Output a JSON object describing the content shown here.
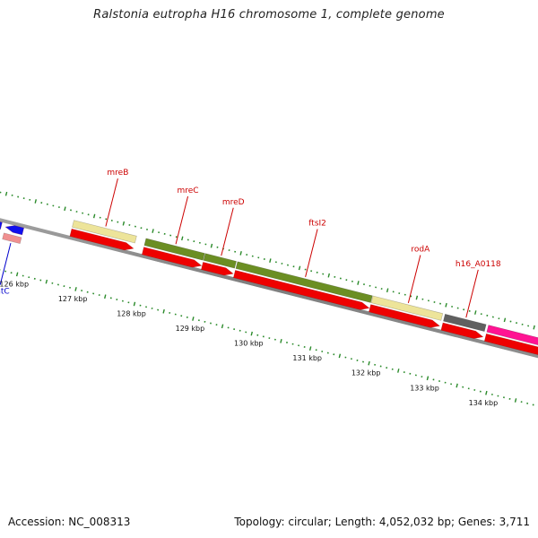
{
  "title": "Ralstonia eutropha H16 chromosome 1, complete genome",
  "footer": {
    "accession": "Accession: NC_008313",
    "summary": "Topology: circular; Length: 4,052,032 bp; Genes: 3,711"
  },
  "colors": {
    "backbone": "#8a8a8a",
    "dots": "#2a8a2a",
    "gene_label": "#cc0000",
    "gatc_label": "#0000cc",
    "cds": "#ee0000",
    "cds_dim": "#f09090",
    "gene_blue": "#1010ee",
    "cat_khaki": "#ede49a",
    "cat_olive": "#6b8e23",
    "cat_grey": "#606060",
    "cat_pink": "#ff1493"
  },
  "scale": {
    "unit": "kbp",
    "ticks": [
      "126 kbp",
      "127 kbp",
      "128 kbp",
      "129 kbp",
      "130 kbp",
      "131 kbp",
      "132 kbp",
      "133 kbp",
      "134 kbp"
    ]
  },
  "genes": [
    {
      "name": "gatC",
      "start_kbp": 125.62,
      "end_kbp": 125.92,
      "strand": "-",
      "category": "blue",
      "label_color": "gatc_label",
      "label_side": "inner"
    },
    {
      "name": "mreB",
      "start_kbp": 126.69,
      "end_kbp": 127.76,
      "strand": "+",
      "category": "khaki",
      "label_color": "gene_label",
      "label_side": "outer"
    },
    {
      "name": "mreC",
      "start_kbp": 127.92,
      "end_kbp": 128.92,
      "strand": "+",
      "category": "olive",
      "label_color": "gene_label",
      "label_side": "outer"
    },
    {
      "name": "mreD",
      "start_kbp": 128.93,
      "end_kbp": 129.46,
      "strand": "+",
      "category": "olive",
      "label_color": "gene_label",
      "label_side": "outer"
    },
    {
      "name": "ftsI2",
      "start_kbp": 129.48,
      "end_kbp": 131.78,
      "strand": "+",
      "category": "olive",
      "label_color": "gene_label",
      "label_side": "outer"
    },
    {
      "name": "rodA",
      "start_kbp": 131.79,
      "end_kbp": 132.98,
      "strand": "+",
      "category": "khaki",
      "label_color": "gene_label",
      "label_side": "outer"
    },
    {
      "name": "h16_A0118",
      "start_kbp": 133.02,
      "end_kbp": 133.72,
      "strand": "+",
      "category": "grey",
      "label_color": "gene_label",
      "label_side": "outer"
    },
    {
      "name": "",
      "start_kbp": 133.76,
      "end_kbp": 135.0,
      "strand": "+",
      "category": "pink",
      "label_color": "gene_label",
      "label_side": "outer"
    },
    {
      "name": "",
      "start_kbp": 125.0,
      "end_kbp": 125.55,
      "strand": "-",
      "category": "blue",
      "label_color": "gene_label",
      "label_side": "none"
    }
  ]
}
